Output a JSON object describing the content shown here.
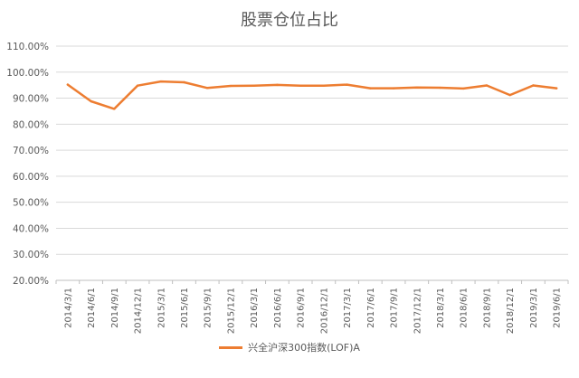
{
  "chart_data": {
    "type": "line",
    "title": "股票仓位占比",
    "xlabel": "",
    "ylabel": "",
    "categories": [
      "2014/3/1",
      "2014/6/1",
      "2014/9/1",
      "2014/12/1",
      "2015/3/1",
      "2015/6/1",
      "2015/9/1",
      "2015/12/1",
      "2016/3/1",
      "2016/6/1",
      "2016/9/1",
      "2016/12/1",
      "2017/3/1",
      "2017/6/1",
      "2017/9/1",
      "2017/12/1",
      "2018/3/1",
      "2018/6/1",
      "2018/9/1",
      "2018/12/1",
      "2019/3/1",
      "2019/6/1"
    ],
    "series": [
      {
        "name": "兴全沪深300指数(LOF)A",
        "color": "#ED7D31",
        "values": [
          95.2,
          88.8,
          85.9,
          94.8,
          96.4,
          96.1,
          93.9,
          94.7,
          94.8,
          95.1,
          94.8,
          94.8,
          95.2,
          93.8,
          93.8,
          94.1,
          94.0,
          93.7,
          94.9,
          91.2,
          94.9,
          93.8
        ]
      }
    ],
    "ylim": [
      20,
      110
    ],
    "ytick_step": 10,
    "ytick_labels": [
      "20.00%",
      "30.00%",
      "40.00%",
      "50.00%",
      "60.00%",
      "70.00%",
      "80.00%",
      "90.00%",
      "100.00%",
      "110.00%"
    ],
    "grid": true,
    "legend_position": "bottom"
  }
}
